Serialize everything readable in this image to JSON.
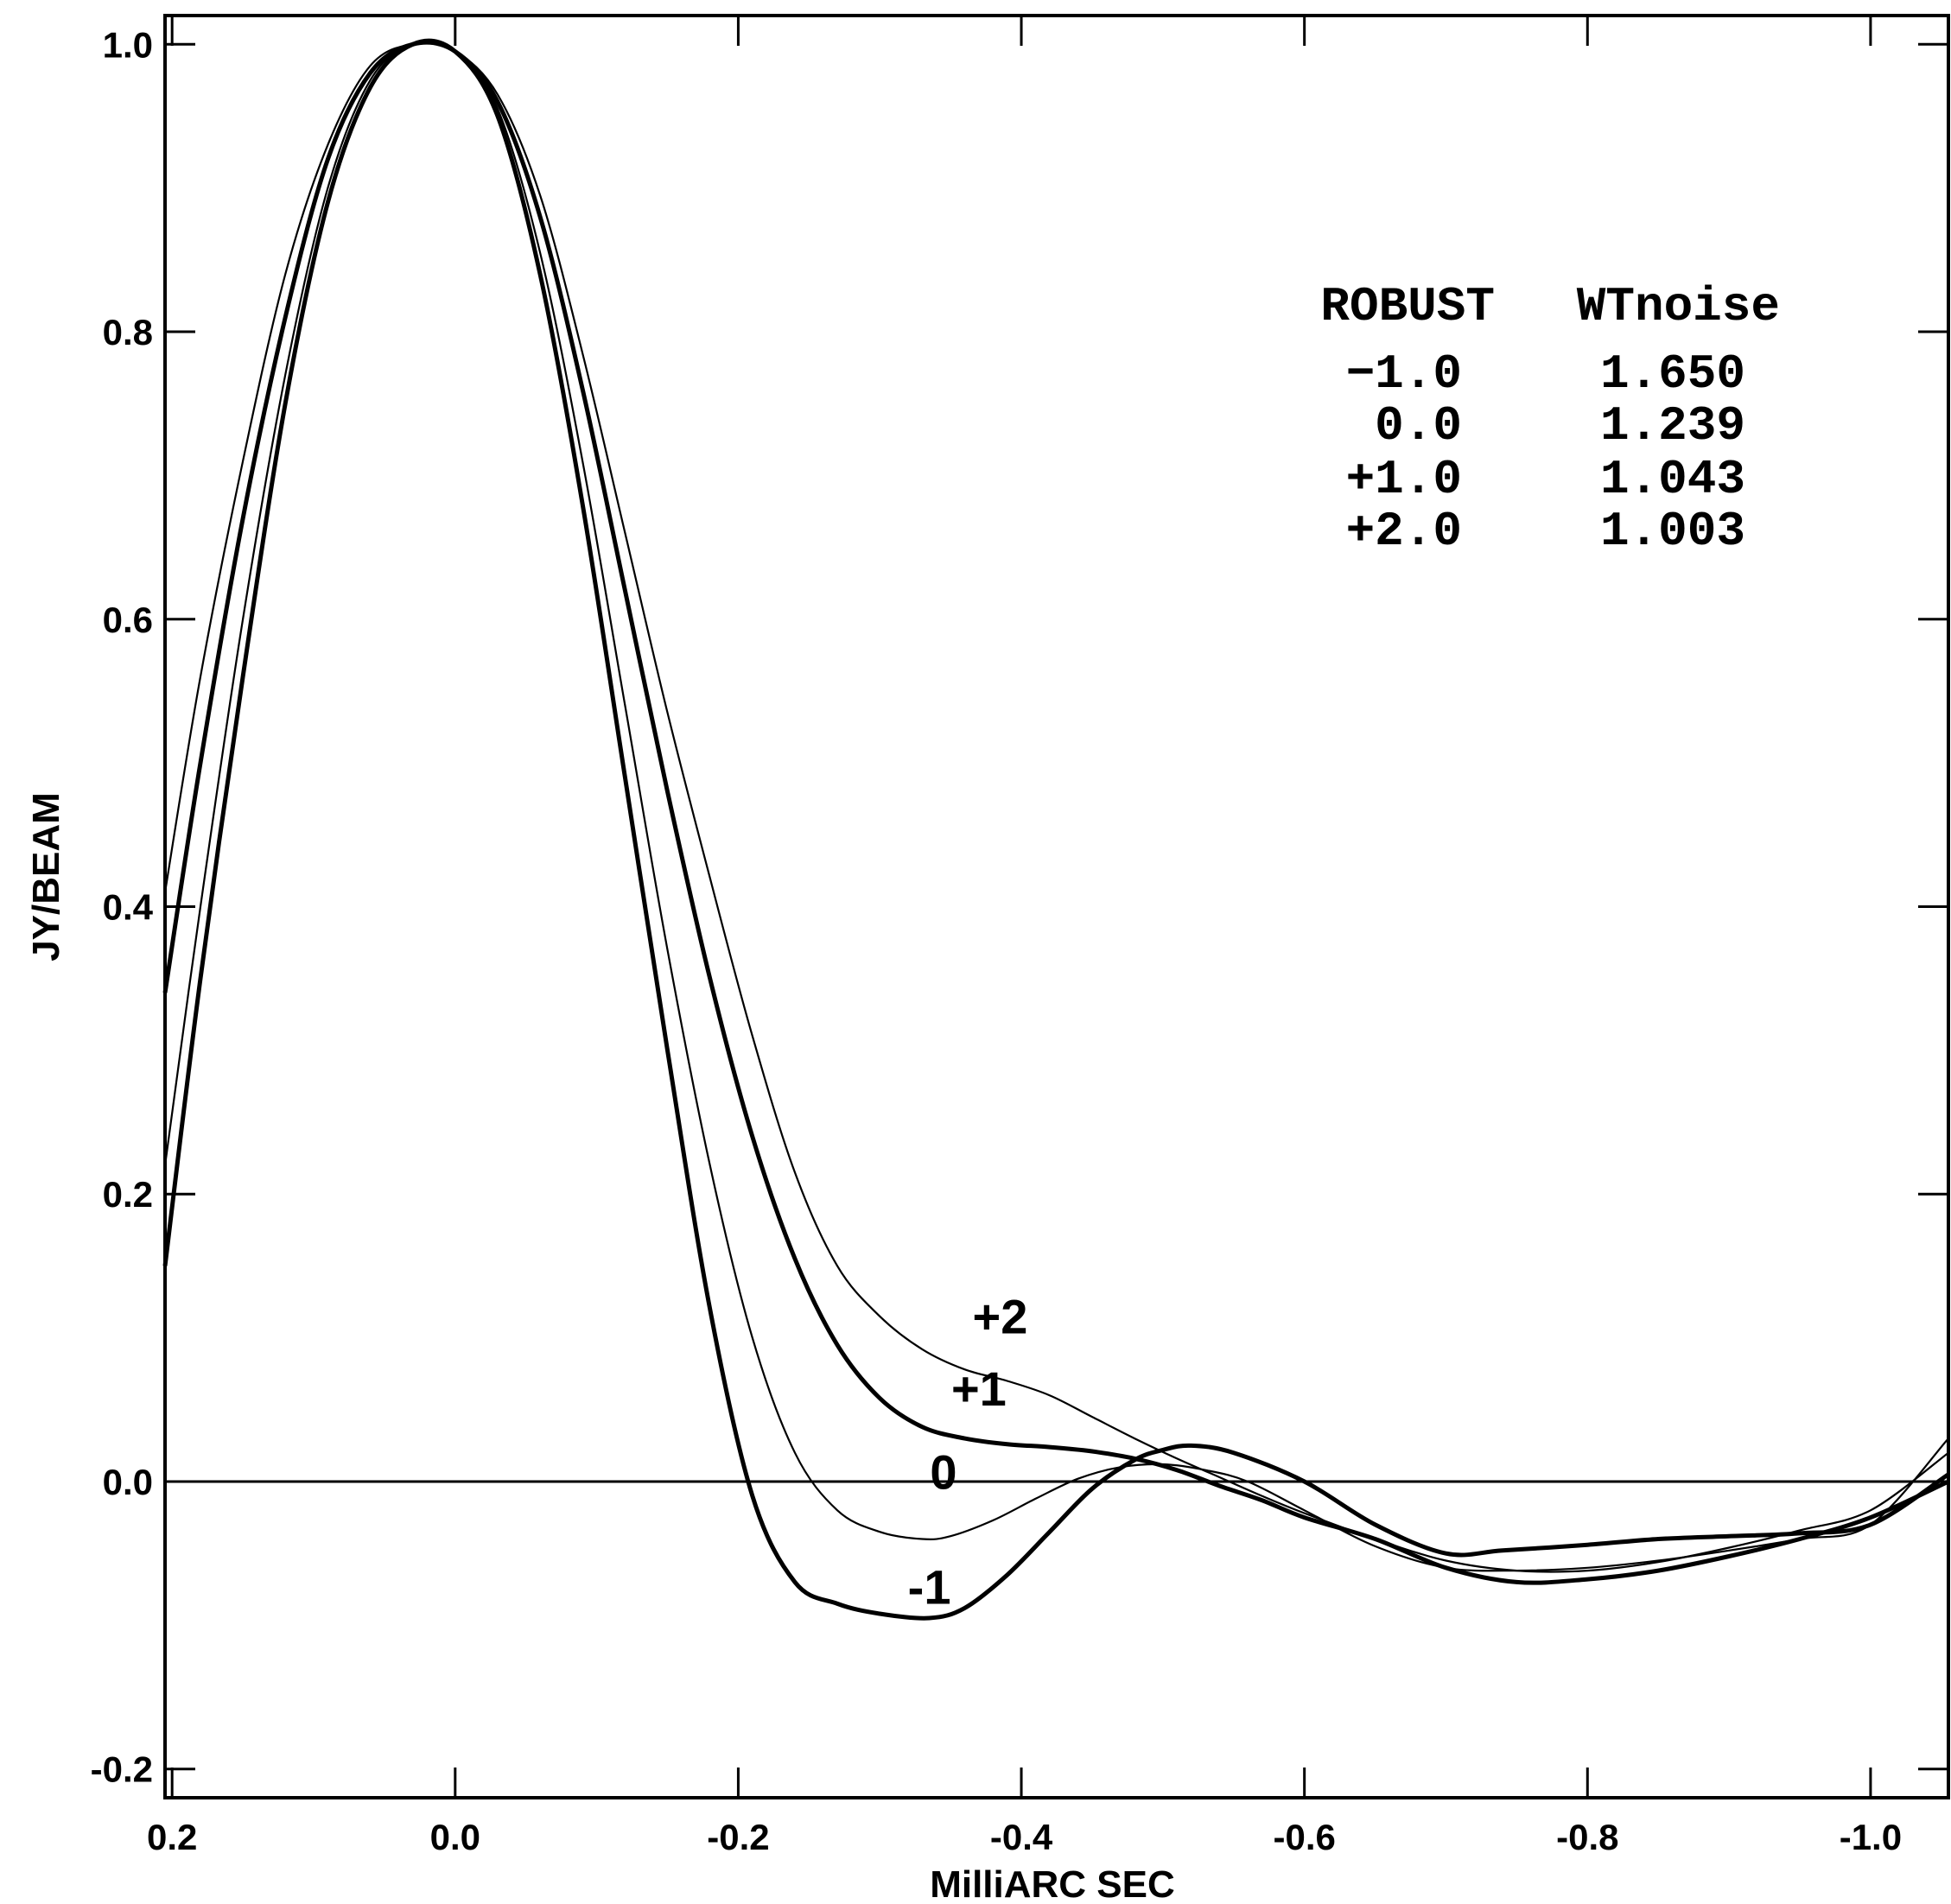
{
  "chart_data": {
    "type": "line",
    "xlabel": "MilliARC SEC",
    "ylabel": "JY/BEAM",
    "xlim": [
      0.205,
      -1.055
    ],
    "ylim": [
      -0.22,
      1.02
    ],
    "x_ticks": [
      0.2,
      0.0,
      -0.2,
      -0.4,
      -0.6,
      -0.8,
      -1.0
    ],
    "x_tick_labels": [
      "0.2",
      "0.0",
      "-0.2",
      "-0.4",
      "-0.6",
      "-0.8",
      "-1.0"
    ],
    "y_ticks": [
      1.0,
      0.8,
      0.6,
      0.4,
      0.2,
      0.0,
      -0.2
    ],
    "y_tick_labels": [
      "1.0",
      "0.8",
      "0.6",
      "0.4",
      "0.2",
      "0.0",
      "-0.2"
    ],
    "zero_line": true,
    "grid": false,
    "legend": {
      "placement": "top-right",
      "header": [
        "ROBUST",
        "WTnoise"
      ],
      "rows": [
        [
          "−1.0",
          "1.650"
        ],
        [
          "0.0",
          "1.239"
        ],
        [
          "+1.0",
          "1.043"
        ],
        [
          "+2.0",
          "1.003"
        ]
      ]
    },
    "series": [
      {
        "label": "-1",
        "label_at": [
          -0.335,
          -0.085
        ],
        "stroke": "thick",
        "x": [
          0.205,
          0.18,
          0.15,
          0.12,
          0.09,
          0.06,
          0.03,
          0.0,
          -0.03,
          -0.06,
          -0.09,
          -0.12,
          -0.15,
          -0.18,
          -0.21,
          -0.24,
          -0.27,
          -0.3,
          -0.335,
          -0.36,
          -0.39,
          -0.42,
          -0.45,
          -0.48,
          -0.5,
          -0.52,
          -0.55,
          -0.6,
          -0.65,
          -0.7,
          -0.74,
          -0.8,
          -0.85,
          -0.9,
          -0.95,
          -1.0,
          -1.055
        ],
        "y": [
          0.15,
          0.35,
          0.56,
          0.75,
          0.89,
          0.97,
          1.0,
          0.995,
          0.95,
          0.84,
          0.68,
          0.49,
          0.3,
          0.12,
          -0.01,
          -0.07,
          -0.085,
          -0.092,
          -0.095,
          -0.088,
          -0.065,
          -0.035,
          -0.005,
          0.015,
          0.022,
          0.025,
          0.02,
          0.0,
          -0.03,
          -0.05,
          -0.048,
          -0.044,
          -0.04,
          -0.038,
          -0.036,
          -0.03,
          0.005
        ]
      },
      {
        "label": "0",
        "label_at": [
          -0.345,
          -0.005
        ],
        "stroke": "thin",
        "x": [
          0.205,
          0.18,
          0.15,
          0.12,
          0.09,
          0.06,
          0.03,
          0.0,
          -0.03,
          -0.06,
          -0.09,
          -0.12,
          -0.15,
          -0.18,
          -0.21,
          -0.24,
          -0.27,
          -0.3,
          -0.33,
          -0.35,
          -0.38,
          -0.41,
          -0.44,
          -0.47,
          -0.5,
          -0.53,
          -0.56,
          -0.6,
          -0.65,
          -0.7,
          -0.75,
          -0.8,
          -0.85,
          -0.9,
          -0.95,
          -1.0,
          -1.055
        ],
        "y": [
          0.22,
          0.4,
          0.6,
          0.77,
          0.9,
          0.975,
          1.0,
          0.995,
          0.955,
          0.855,
          0.71,
          0.54,
          0.37,
          0.22,
          0.1,
          0.02,
          -0.02,
          -0.035,
          -0.04,
          -0.038,
          -0.027,
          -0.012,
          0.002,
          0.01,
          0.012,
          0.008,
          0.0,
          -0.02,
          -0.045,
          -0.06,
          -0.062,
          -0.06,
          -0.055,
          -0.048,
          -0.04,
          -0.03,
          0.03
        ]
      },
      {
        "label": "+1",
        "label_at": [
          -0.37,
          0.053
        ],
        "stroke": "thick",
        "x": [
          0.205,
          0.18,
          0.15,
          0.12,
          0.09,
          0.06,
          0.03,
          0.0,
          -0.03,
          -0.06,
          -0.09,
          -0.12,
          -0.15,
          -0.18,
          -0.21,
          -0.24,
          -0.27,
          -0.3,
          -0.33,
          -0.36,
          -0.39,
          -0.42,
          -0.45,
          -0.48,
          -0.51,
          -0.54,
          -0.57,
          -0.6,
          -0.65,
          -0.7,
          -0.75,
          -0.8,
          -0.85,
          -0.9,
          -0.95,
          -1.0,
          -1.055
        ],
        "y": [
          0.34,
          0.5,
          0.67,
          0.81,
          0.92,
          0.98,
          1.0,
          0.995,
          0.96,
          0.88,
          0.76,
          0.62,
          0.48,
          0.35,
          0.24,
          0.155,
          0.095,
          0.058,
          0.038,
          0.03,
          0.026,
          0.024,
          0.021,
          0.016,
          0.008,
          -0.003,
          -0.013,
          -0.025,
          -0.04,
          -0.06,
          -0.07,
          -0.068,
          -0.062,
          -0.052,
          -0.04,
          -0.025,
          0.0
        ]
      },
      {
        "label": "+2",
        "label_at": [
          -0.385,
          0.103
        ],
        "stroke": "thin",
        "x": [
          0.205,
          0.18,
          0.15,
          0.12,
          0.09,
          0.06,
          0.03,
          0.0,
          -0.03,
          -0.06,
          -0.09,
          -0.12,
          -0.15,
          -0.18,
          -0.21,
          -0.24,
          -0.27,
          -0.3,
          -0.33,
          -0.36,
          -0.39,
          -0.42,
          -0.45,
          -0.48,
          -0.51,
          -0.54,
          -0.57,
          -0.6,
          -0.65,
          -0.7,
          -0.75,
          -0.8,
          -0.85,
          -0.9,
          -0.95,
          -1.0,
          -1.055
        ],
        "y": [
          0.41,
          0.56,
          0.71,
          0.84,
          0.93,
          0.985,
          1.0,
          0.995,
          0.965,
          0.895,
          0.785,
          0.66,
          0.535,
          0.42,
          0.31,
          0.215,
          0.15,
          0.115,
          0.092,
          0.078,
          0.07,
          0.06,
          0.045,
          0.03,
          0.016,
          0.003,
          -0.01,
          -0.022,
          -0.04,
          -0.055,
          -0.062,
          -0.062,
          -0.056,
          -0.046,
          -0.034,
          -0.02,
          0.02
        ]
      }
    ]
  }
}
